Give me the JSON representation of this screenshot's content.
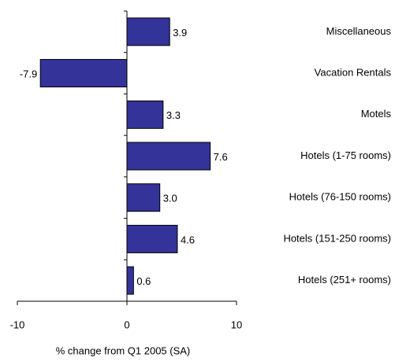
{
  "chart_data": {
    "type": "bar",
    "orientation": "horizontal",
    "categories": [
      "Miscellaneous",
      "Vacation Rentals",
      "Motels",
      "Hotels (1-75 rooms)",
      "Hotels (76-150 rooms)",
      "Hotels (151-250 rooms)",
      "Hotels (251+ rooms)"
    ],
    "values": [
      3.9,
      -7.9,
      3.3,
      7.6,
      3.0,
      4.6,
      0.6
    ],
    "value_labels": [
      "3.9",
      "-7.9",
      "3.3",
      "7.6",
      "3.0",
      "4.6",
      "0.6"
    ],
    "color": "#333399",
    "xlim": [
      -10,
      10
    ],
    "xticks": [
      -10,
      0,
      10
    ],
    "x_label": "% change from Q1 2005 (SA)"
  }
}
